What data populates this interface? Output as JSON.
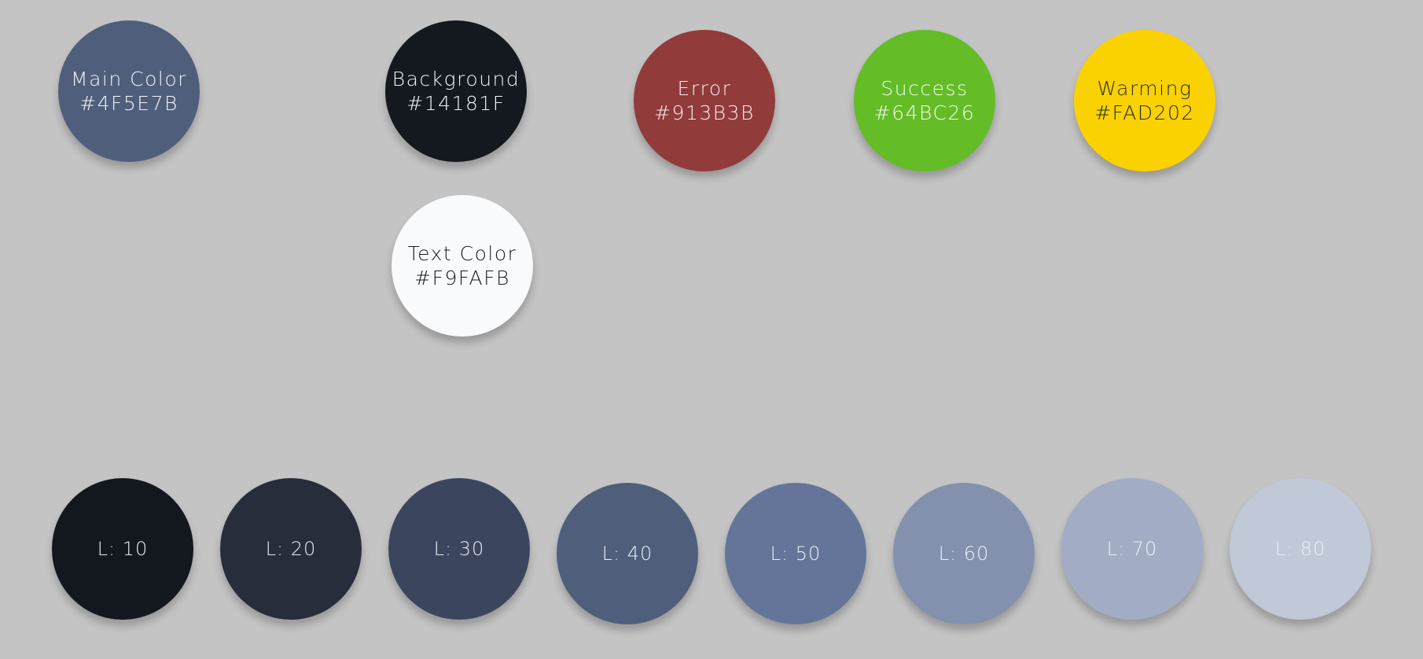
{
  "palette": {
    "main": {
      "name": "Main Color",
      "hex": "#4F5E7B",
      "fill": "#4f5e7b",
      "text_color": "#f1f3f7"
    },
    "background": {
      "name": "Background",
      "hex": "#14181F",
      "fill": "#14181f",
      "text_color": "#f1f3f7"
    },
    "error": {
      "name": "Error",
      "hex": "#913B3B",
      "fill": "#913b3b",
      "text_color": "#f6ecec"
    },
    "success": {
      "name": "Success",
      "hex": "#64BC26",
      "fill": "#64bc26",
      "text_color": "#f3fbee"
    },
    "warning": {
      "name": "Warming",
      "hex": "#FAD202",
      "fill": "#fad202",
      "text_color": "#2a2a2a"
    },
    "text": {
      "name": "Text Color",
      "hex": "#F9FAFB",
      "fill": "#f9fafb",
      "text_color": "#1a1d22"
    }
  },
  "shades": [
    {
      "label": "L: 10",
      "fill": "#13171e",
      "text_color": "#e8ebf0"
    },
    {
      "label": "L: 20",
      "fill": "#272d3b",
      "text_color": "#e8ebf0"
    },
    {
      "label": "L: 30",
      "fill": "#3b465e",
      "text_color": "#e8ebf0"
    },
    {
      "label": "L: 40",
      "fill": "#4f5e7b",
      "text_color": "#eef0f4"
    },
    {
      "label": "L: 50",
      "fill": "#657599",
      "text_color": "#eef0f4"
    },
    {
      "label": "L: 60",
      "fill": "#8391af",
      "text_color": "#eef0f4"
    },
    {
      "label": "L: 70",
      "fill": "#a2adc5",
      "text_color": "#eef0f4"
    },
    {
      "label": "L: 80",
      "fill": "#c1c8d8",
      "text_color": "#eef0f4"
    }
  ]
}
